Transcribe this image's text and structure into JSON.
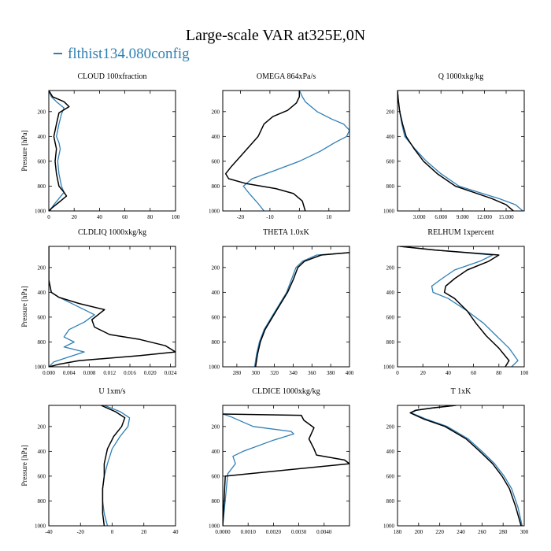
{
  "title": "Large-scale VAR at325E,0N",
  "legend_label": "flthist134.080config",
  "colors": {
    "control": "#000000",
    "experiment": "#2f7fb5"
  },
  "chart_data": [
    {
      "type": "line",
      "title": "CLOUD  100xfraction",
      "ylabel": "Pressure [hPa]",
      "xlim": [
        0,
        100
      ],
      "ylim": [
        1000,
        30
      ],
      "xticks": [
        0,
        20,
        40,
        60,
        80,
        100
      ],
      "xticklabels": [
        "0",
        "20",
        "40",
        "60",
        "80",
        "100"
      ],
      "yticks": [
        200,
        400,
        600,
        800,
        1000
      ],
      "yticklabels": [
        "200",
        "400",
        "600",
        "800",
        "1000"
      ],
      "series": [
        {
          "role": "control",
          "x": [
            0,
            3,
            12,
            16,
            8,
            6,
            4,
            5,
            6,
            5,
            6,
            8,
            12,
            14,
            8,
            2,
            0
          ],
          "y": [
            30,
            80,
            120,
            160,
            210,
            300,
            400,
            450,
            500,
            600,
            700,
            800,
            850,
            880,
            930,
            980,
            1000
          ]
        },
        {
          "role": "experiment",
          "x": [
            0,
            2,
            6,
            12,
            10,
            8,
            6,
            8,
            9,
            7,
            8,
            10,
            12,
            8,
            4,
            2,
            1
          ],
          "y": [
            30,
            80,
            120,
            170,
            220,
            300,
            400,
            450,
            500,
            600,
            700,
            800,
            850,
            900,
            950,
            980,
            1000
          ]
        }
      ]
    },
    {
      "type": "line",
      "title": "OMEGA  864xPa/s",
      "ylabel": "",
      "xlim": [
        -26,
        17
      ],
      "ylim": [
        1000,
        30
      ],
      "xticks": [
        -20,
        -10,
        0,
        10
      ],
      "xticklabels": [
        "-20",
        "-10",
        "0",
        "10"
      ],
      "yticks": [
        200,
        400,
        600,
        800,
        1000
      ],
      "yticklabels": [
        "200",
        "400",
        "600",
        "800",
        "1000"
      ],
      "series": [
        {
          "role": "control",
          "x": [
            0,
            0,
            -1,
            -4,
            -9,
            -12,
            -14,
            -17,
            -20,
            -23,
            -25,
            -24,
            -18,
            -8,
            -2,
            1,
            2
          ],
          "y": [
            30,
            80,
            130,
            190,
            240,
            300,
            400,
            480,
            560,
            640,
            700,
            740,
            780,
            820,
            860,
            920,
            1000
          ]
        },
        {
          "role": "experiment",
          "x": [
            0,
            1,
            2,
            6,
            11,
            15,
            17,
            16,
            12,
            7,
            0,
            -9,
            -16,
            -19,
            -17,
            -14,
            -12
          ],
          "y": [
            30,
            80,
            120,
            200,
            260,
            300,
            350,
            400,
            450,
            520,
            600,
            680,
            740,
            800,
            860,
            940,
            1000
          ]
        }
      ]
    },
    {
      "type": "line",
      "title": "Q  1000xkg/kg",
      "ylabel": "",
      "xlim": [
        0,
        17.5
      ],
      "ylim": [
        1000,
        30
      ],
      "xticks": [
        3,
        6,
        9,
        12,
        15
      ],
      "xticklabels": [
        "3.000",
        "6.000",
        "9.000",
        "12.000",
        "15.000"
      ],
      "yticks": [
        200,
        400,
        600,
        800,
        1000
      ],
      "yticklabels": [
        "200",
        "400",
        "600",
        "800",
        "1000"
      ],
      "series": [
        {
          "role": "control",
          "x": [
            0,
            0.1,
            0.3,
            0.7,
            1.2,
            2.3,
            3.6,
            5.5,
            8,
            10.5,
            13,
            15,
            16
          ],
          "y": [
            30,
            100,
            200,
            300,
            400,
            500,
            600,
            700,
            800,
            850,
            900,
            950,
            1000
          ]
        },
        {
          "role": "experiment",
          "x": [
            0,
            0.1,
            0.3,
            0.6,
            1.0,
            2.4,
            4.0,
            6.0,
            8.5,
            11.2,
            14,
            16.3,
            17.3
          ],
          "y": [
            30,
            100,
            200,
            300,
            400,
            500,
            600,
            700,
            800,
            850,
            900,
            950,
            1000
          ]
        }
      ]
    },
    {
      "type": "line",
      "title": "CLDLIQ  1000xkg/kg",
      "ylabel": "Pressure [hPa]",
      "xlim": [
        0,
        0.025
      ],
      "ylim": [
        1000,
        30
      ],
      "xticks": [
        0,
        0.004,
        0.008,
        0.012,
        0.016,
        0.02,
        0.024
      ],
      "xticklabels": [
        "0.000",
        "0.004",
        "0.008",
        "0.012",
        "0.016",
        "0.020",
        "0.024"
      ],
      "yticks": [
        200,
        400,
        600,
        800,
        1000
      ],
      "yticklabels": [
        "200",
        "400",
        "600",
        "800",
        "1000"
      ],
      "series": [
        {
          "role": "control",
          "x": [
            0,
            0,
            0.0005,
            0.002,
            0.006,
            0.011,
            0.0085,
            0.009,
            0.012,
            0.018,
            0.023,
            0.025,
            0.018,
            0.006,
            0.002,
            0
          ],
          "y": [
            30,
            300,
            400,
            440,
            490,
            540,
            620,
            680,
            740,
            780,
            830,
            880,
            910,
            950,
            980,
            1000
          ]
        },
        {
          "role": "experiment",
          "x": [
            0,
            0,
            0.0005,
            0.002,
            0.005,
            0.009,
            0.007,
            0.004,
            0.003,
            0.005,
            0.003,
            0.007,
            0.004,
            0.001,
            0
          ],
          "y": [
            30,
            300,
            400,
            440,
            500,
            580,
            640,
            700,
            760,
            800,
            840,
            880,
            920,
            960,
            1000
          ]
        }
      ]
    },
    {
      "type": "line",
      "title": "THETA  1.0xK",
      "ylabel": "",
      "xlim": [
        265,
        400
      ],
      "ylim": [
        1000,
        30
      ],
      "xticks": [
        280,
        300,
        320,
        340,
        360,
        380,
        400
      ],
      "xticklabels": [
        "280",
        "300",
        "320",
        "340",
        "360",
        "380",
        "400"
      ],
      "yticks": [
        200,
        400,
        600,
        800,
        1000
      ],
      "yticklabels": [
        "200",
        "400",
        "600",
        "800",
        "1000"
      ],
      "series": [
        {
          "role": "control",
          "x": [
            400,
            370,
            352,
            345,
            340,
            334,
            326,
            318,
            310,
            305,
            302,
            300
          ],
          "y": [
            80,
            100,
            150,
            200,
            300,
            400,
            500,
            600,
            700,
            800,
            900,
            1000
          ]
        },
        {
          "role": "experiment",
          "x": [
            400,
            365,
            350,
            343,
            338,
            333,
            325,
            317,
            309,
            304,
            301,
            299
          ],
          "y": [
            80,
            100,
            150,
            200,
            300,
            400,
            500,
            600,
            700,
            800,
            900,
            1000
          ]
        }
      ]
    },
    {
      "type": "line",
      "title": "RELHUM  1xpercent",
      "ylabel": "",
      "xlim": [
        0,
        100
      ],
      "ylim": [
        1000,
        30
      ],
      "xticks": [
        0,
        20,
        40,
        60,
        80,
        100
      ],
      "xticklabels": [
        "0",
        "20",
        "40",
        "60",
        "80",
        "100"
      ],
      "yticks": [
        200,
        400,
        600,
        800,
        1000
      ],
      "yticklabels": [
        "200",
        "400",
        "600",
        "800",
        "1000"
      ],
      "series": [
        {
          "role": "control",
          "x": [
            2,
            30,
            80,
            72,
            55,
            45,
            38,
            37,
            45,
            55,
            62,
            70,
            80,
            88,
            85
          ],
          "y": [
            30,
            60,
            100,
            150,
            220,
            290,
            350,
            400,
            450,
            550,
            650,
            750,
            850,
            950,
            1000
          ]
        },
        {
          "role": "experiment",
          "x": [
            2,
            30,
            75,
            65,
            45,
            35,
            27,
            28,
            40,
            55,
            68,
            78,
            88,
            95,
            90
          ],
          "y": [
            30,
            60,
            100,
            150,
            220,
            290,
            350,
            400,
            450,
            550,
            650,
            750,
            850,
            950,
            1000
          ]
        }
      ]
    },
    {
      "type": "line",
      "title": "U  1xm/s",
      "ylabel": "Pressure [hPa]",
      "xlim": [
        -40,
        40
      ],
      "ylim": [
        1000,
        30
      ],
      "xticks": [
        -40,
        -20,
        0,
        20,
        40
      ],
      "xticklabels": [
        "-40",
        "-20",
        "0",
        "20",
        "40"
      ],
      "yticks": [
        200,
        400,
        600,
        800,
        1000
      ],
      "yticklabels": [
        "200",
        "400",
        "600",
        "800",
        "1000"
      ],
      "series": [
        {
          "role": "control",
          "x": [
            -7,
            2,
            8,
            6,
            1,
            -3,
            -5,
            -5,
            -6,
            -6,
            -6,
            -5
          ],
          "y": [
            30,
            80,
            130,
            200,
            280,
            380,
            500,
            600,
            700,
            800,
            900,
            1000
          ]
        },
        {
          "role": "experiment",
          "x": [
            -5,
            5,
            11,
            10,
            5,
            0,
            -3,
            -5,
            -6,
            -6,
            -5,
            -3
          ],
          "y": [
            30,
            80,
            130,
            200,
            280,
            380,
            500,
            600,
            700,
            800,
            900,
            1000
          ]
        }
      ]
    },
    {
      "type": "line",
      "title": "CLDICE  1000xkg/kg",
      "ylabel": "",
      "xlim": [
        0,
        0.005
      ],
      "ylim": [
        1000,
        30
      ],
      "xticks": [
        0,
        0.001,
        0.002,
        0.003,
        0.004
      ],
      "xticklabels": [
        "0.0000",
        "0.0010",
        "0.0020",
        "0.0030",
        "0.0040"
      ],
      "yticks": [
        200,
        400,
        600,
        800,
        1000
      ],
      "yticklabels": [
        "200",
        "400",
        "600",
        "800",
        "1000"
      ],
      "series": [
        {
          "role": "control",
          "x": [
            0,
            0.0031,
            0.0032,
            0.0036,
            0.0034,
            0.0036,
            0.0037,
            0.0048,
            0.005,
            0.0001,
            0
          ],
          "y": [
            100,
            110,
            150,
            210,
            300,
            380,
            430,
            470,
            500,
            600,
            1000
          ]
        },
        {
          "role": "experiment",
          "x": [
            0,
            0.0003,
            0.0012,
            0.0027,
            0.0028,
            0.002,
            0.0008,
            0.0004,
            0.0005,
            0.0002,
            0
          ],
          "y": [
            100,
            120,
            200,
            240,
            260,
            310,
            400,
            440,
            500,
            580,
            1000
          ]
        }
      ]
    },
    {
      "type": "line",
      "title": "T  1xK",
      "ylabel": "",
      "xlim": [
        180,
        300
      ],
      "ylim": [
        1000,
        30
      ],
      "xticks": [
        180,
        200,
        220,
        240,
        260,
        280,
        300
      ],
      "xticklabels": [
        "180",
        "200",
        "220",
        "240",
        "260",
        "280",
        "300"
      ],
      "yticks": [
        200,
        400,
        600,
        800,
        1000
      ],
      "yticklabels": [
        "200",
        "400",
        "600",
        "800",
        "1000"
      ],
      "series": [
        {
          "role": "control",
          "x": [
            235,
            213,
            197,
            192,
            205,
            225,
            245,
            258,
            270,
            279,
            286,
            292,
            297
          ],
          "y": [
            30,
            50,
            70,
            90,
            140,
            200,
            300,
            400,
            500,
            600,
            700,
            850,
            1000
          ]
        },
        {
          "role": "experiment",
          "x": [
            236,
            214,
            198,
            193,
            207,
            227,
            247,
            260,
            272,
            281,
            288,
            294,
            298
          ],
          "y": [
            30,
            50,
            70,
            90,
            140,
            200,
            300,
            400,
            500,
            600,
            700,
            850,
            1000
          ]
        }
      ]
    }
  ]
}
